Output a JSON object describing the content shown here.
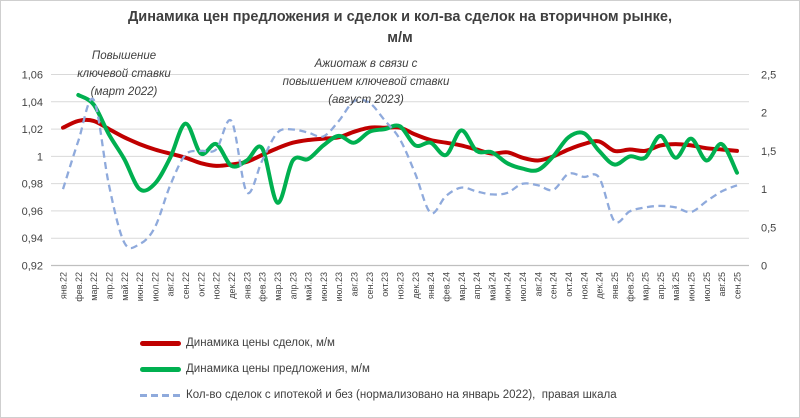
{
  "chart_data": {
    "type": "line",
    "title_line1": "Динамика цен предложения и сделок и кол-ва сделок на вторичном рынке,",
    "title_line2": "м/м",
    "categories": [
      "янв.22",
      "фев.22",
      "мар.22",
      "апр.22",
      "май.22",
      "июн.22",
      "июл.22",
      "авг.22",
      "сен.22",
      "окт.22",
      "ноя.22",
      "дек.22",
      "янв.23",
      "фев.23",
      "мар.23",
      "апр.23",
      "май.23",
      "июн.23",
      "июл.23",
      "авг.23",
      "сен.23",
      "окт.23",
      "ноя.23",
      "дек.23",
      "янв.24",
      "фев.24",
      "мар.24",
      "апр.24",
      "май.24",
      "июн.24",
      "июл.24",
      "авг.24",
      "сен.24",
      "окт.24",
      "ноя.24",
      "дек.24",
      "янв.25",
      "фев.25",
      "мар.25",
      "апр.25",
      "май.25",
      "июн.25",
      "июл.25",
      "авг.25",
      "сен.25"
    ],
    "series": [
      {
        "name": "Динамика цены сделок, м/м",
        "axis": "left",
        "color": "#C00000",
        "dashed": false,
        "width": 4,
        "values": [
          1.021,
          1.026,
          1.026,
          1.02,
          1.014,
          1.009,
          1.005,
          1.002,
          0.999,
          0.995,
          0.993,
          0.994,
          0.996,
          1.001,
          1.006,
          1.01,
          1.012,
          1.013,
          1.014,
          1.018,
          1.021,
          1.021,
          1.021,
          1.016,
          1.012,
          1.01,
          1.008,
          1.005,
          1.002,
          1.003,
          0.999,
          0.997,
          1.0,
          1.005,
          1.009,
          1.011,
          1.004,
          1.005,
          1.004,
          1.008,
          1.009,
          1.008,
          1.006,
          1.005,
          1.004
        ]
      },
      {
        "name": "Динамика цены предложения, м/м",
        "axis": "left",
        "color": "#00B050",
        "dashed": false,
        "width": 4,
        "values": [
          null,
          1.045,
          1.038,
          1.016,
          0.998,
          0.976,
          0.98,
          0.999,
          1.024,
          1.002,
          1.009,
          0.993,
          0.997,
          1.006,
          0.966,
          0.997,
          0.998,
          1.008,
          1.015,
          1.01,
          1.018,
          1.02,
          1.022,
          1.008,
          1.01,
          1.001,
          1.019,
          1.004,
          1.003,
          0.995,
          0.991,
          0.99,
          1.0,
          1.014,
          1.017,
          1.004,
          0.994,
          1.0,
          0.999,
          1.015,
          0.999,
          1.013,
          0.997,
          1.009,
          0.988
        ]
      },
      {
        "name": "Кол-во сделок с ипотекой и без (нормализовано на январь 2022),  правая шкала",
        "axis": "right",
        "color": "#8FAADC",
        "dashed": true,
        "width": 2.3,
        "values": [
          1.0,
          1.63,
          2.17,
          1.05,
          0.3,
          0.28,
          0.5,
          1.05,
          1.45,
          1.5,
          1.52,
          1.89,
          0.96,
          1.37,
          1.74,
          1.78,
          1.74,
          1.69,
          1.89,
          2.15,
          2.13,
          1.9,
          1.65,
          1.2,
          0.69,
          0.91,
          1.02,
          0.97,
          0.93,
          0.95,
          1.07,
          1.05,
          0.99,
          1.2,
          1.16,
          1.15,
          0.58,
          0.71,
          0.76,
          0.78,
          0.76,
          0.7,
          0.84,
          0.97,
          1.05
        ]
      }
    ],
    "left_axis": {
      "range": [
        0.92,
        1.06
      ],
      "tick_labels": [
        "1,06",
        "1,04",
        "1,02",
        "1",
        "0,98",
        "0,96",
        "0,94",
        "0,92"
      ],
      "tick_values": [
        1.06,
        1.04,
        1.02,
        1,
        0.98,
        0.96,
        0.94,
        0.92
      ]
    },
    "right_axis": {
      "range": [
        0,
        2.5
      ],
      "tick_labels": [
        "2,5",
        "2",
        "1,5",
        "1",
        "0,5",
        "0"
      ],
      "tick_values": [
        2.5,
        2,
        1.5,
        1,
        0.5,
        0
      ]
    },
    "grid": true,
    "grid_color": "#D9D9D9",
    "axis_line_color": "#BFBFBF",
    "tick_text_color": "#444444",
    "legend_position": "bottom",
    "annotations": [
      {
        "lines": [
          "Повышение",
          "ключевой ставки",
          "(март 2022)"
        ]
      },
      {
        "lines": [
          "Ажиотаж в связи с",
          "повышением ключевой ставки",
          "(август 2023)"
        ]
      }
    ]
  }
}
